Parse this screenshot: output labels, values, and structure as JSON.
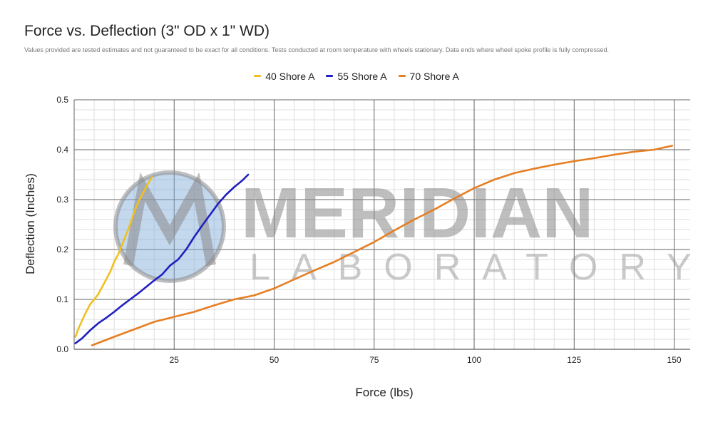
{
  "chart_data": {
    "type": "line",
    "title": "Force vs. Deflection (3\" OD x 1\" WD)",
    "subtitle": "Values provided are tested estimates and not guaranteed to be exact for all conditions. Tests conducted at room temperature with wheels stationary. Data ends where wheel spoke profile is fully compressed.",
    "xlabel": "Force (lbs)",
    "ylabel": "Deflection (Inches)",
    "xlim": [
      0,
      154
    ],
    "ylim": [
      0,
      0.5
    ],
    "x_ticks": [
      25,
      50,
      75,
      100,
      125,
      150
    ],
    "x_tick_labels": [
      "25",
      "50",
      "75",
      "100",
      "125",
      "150"
    ],
    "y_ticks": [
      0,
      0.1,
      0.2,
      0.3,
      0.4,
      0.5
    ],
    "y_tick_labels": [
      "0.0",
      "0.1",
      "0.2",
      "0.3",
      "0.4",
      "0.5"
    ],
    "grid": true,
    "legend_position": "top",
    "series": [
      {
        "name": "40 Shore A",
        "color": "#f0c020",
        "points": [
          [
            0.3,
            0.025
          ],
          [
            1,
            0.04
          ],
          [
            2,
            0.058
          ],
          [
            3,
            0.075
          ],
          [
            4,
            0.09
          ],
          [
            5,
            0.1
          ],
          [
            6,
            0.11
          ],
          [
            7,
            0.125
          ],
          [
            8,
            0.14
          ],
          [
            9,
            0.155
          ],
          [
            10,
            0.175
          ],
          [
            11,
            0.19
          ],
          [
            12,
            0.21
          ],
          [
            13,
            0.23
          ],
          [
            14,
            0.25
          ],
          [
            15,
            0.275
          ],
          [
            16,
            0.295
          ],
          [
            17,
            0.31
          ],
          [
            18,
            0.325
          ],
          [
            19,
            0.34
          ],
          [
            19.5,
            0.345
          ]
        ]
      },
      {
        "name": "55 Shore A",
        "color": "#2020c0",
        "points": [
          [
            0.3,
            0.012
          ],
          [
            2,
            0.022
          ],
          [
            4,
            0.038
          ],
          [
            6,
            0.052
          ],
          [
            8,
            0.063
          ],
          [
            10,
            0.075
          ],
          [
            12,
            0.088
          ],
          [
            14,
            0.1
          ],
          [
            16,
            0.112
          ],
          [
            18,
            0.125
          ],
          [
            20,
            0.138
          ],
          [
            22,
            0.15
          ],
          [
            24,
            0.168
          ],
          [
            26,
            0.18
          ],
          [
            28,
            0.2
          ],
          [
            30,
            0.225
          ],
          [
            32,
            0.248
          ],
          [
            34,
            0.27
          ],
          [
            36,
            0.292
          ],
          [
            38,
            0.31
          ],
          [
            40,
            0.325
          ],
          [
            42,
            0.338
          ],
          [
            43.5,
            0.35
          ]
        ]
      },
      {
        "name": "70 Shore A",
        "color": "#e67e22",
        "points": [
          [
            4.5,
            0.008
          ],
          [
            10,
            0.025
          ],
          [
            15,
            0.04
          ],
          [
            20,
            0.055
          ],
          [
            25,
            0.065
          ],
          [
            30,
            0.075
          ],
          [
            35,
            0.088
          ],
          [
            40,
            0.1
          ],
          [
            45,
            0.108
          ],
          [
            50,
            0.122
          ],
          [
            55,
            0.14
          ],
          [
            60,
            0.158
          ],
          [
            65,
            0.175
          ],
          [
            70,
            0.195
          ],
          [
            75,
            0.215
          ],
          [
            80,
            0.238
          ],
          [
            85,
            0.26
          ],
          [
            90,
            0.28
          ],
          [
            95,
            0.302
          ],
          [
            100,
            0.323
          ],
          [
            105,
            0.34
          ],
          [
            110,
            0.353
          ],
          [
            115,
            0.362
          ],
          [
            120,
            0.37
          ],
          [
            125,
            0.377
          ],
          [
            130,
            0.383
          ],
          [
            135,
            0.39
          ],
          [
            140,
            0.396
          ],
          [
            145,
            0.4
          ],
          [
            149.5,
            0.408
          ]
        ]
      }
    ]
  },
  "watermark": {
    "brand": "MERIDIAN",
    "sub": "LABORATORY"
  }
}
